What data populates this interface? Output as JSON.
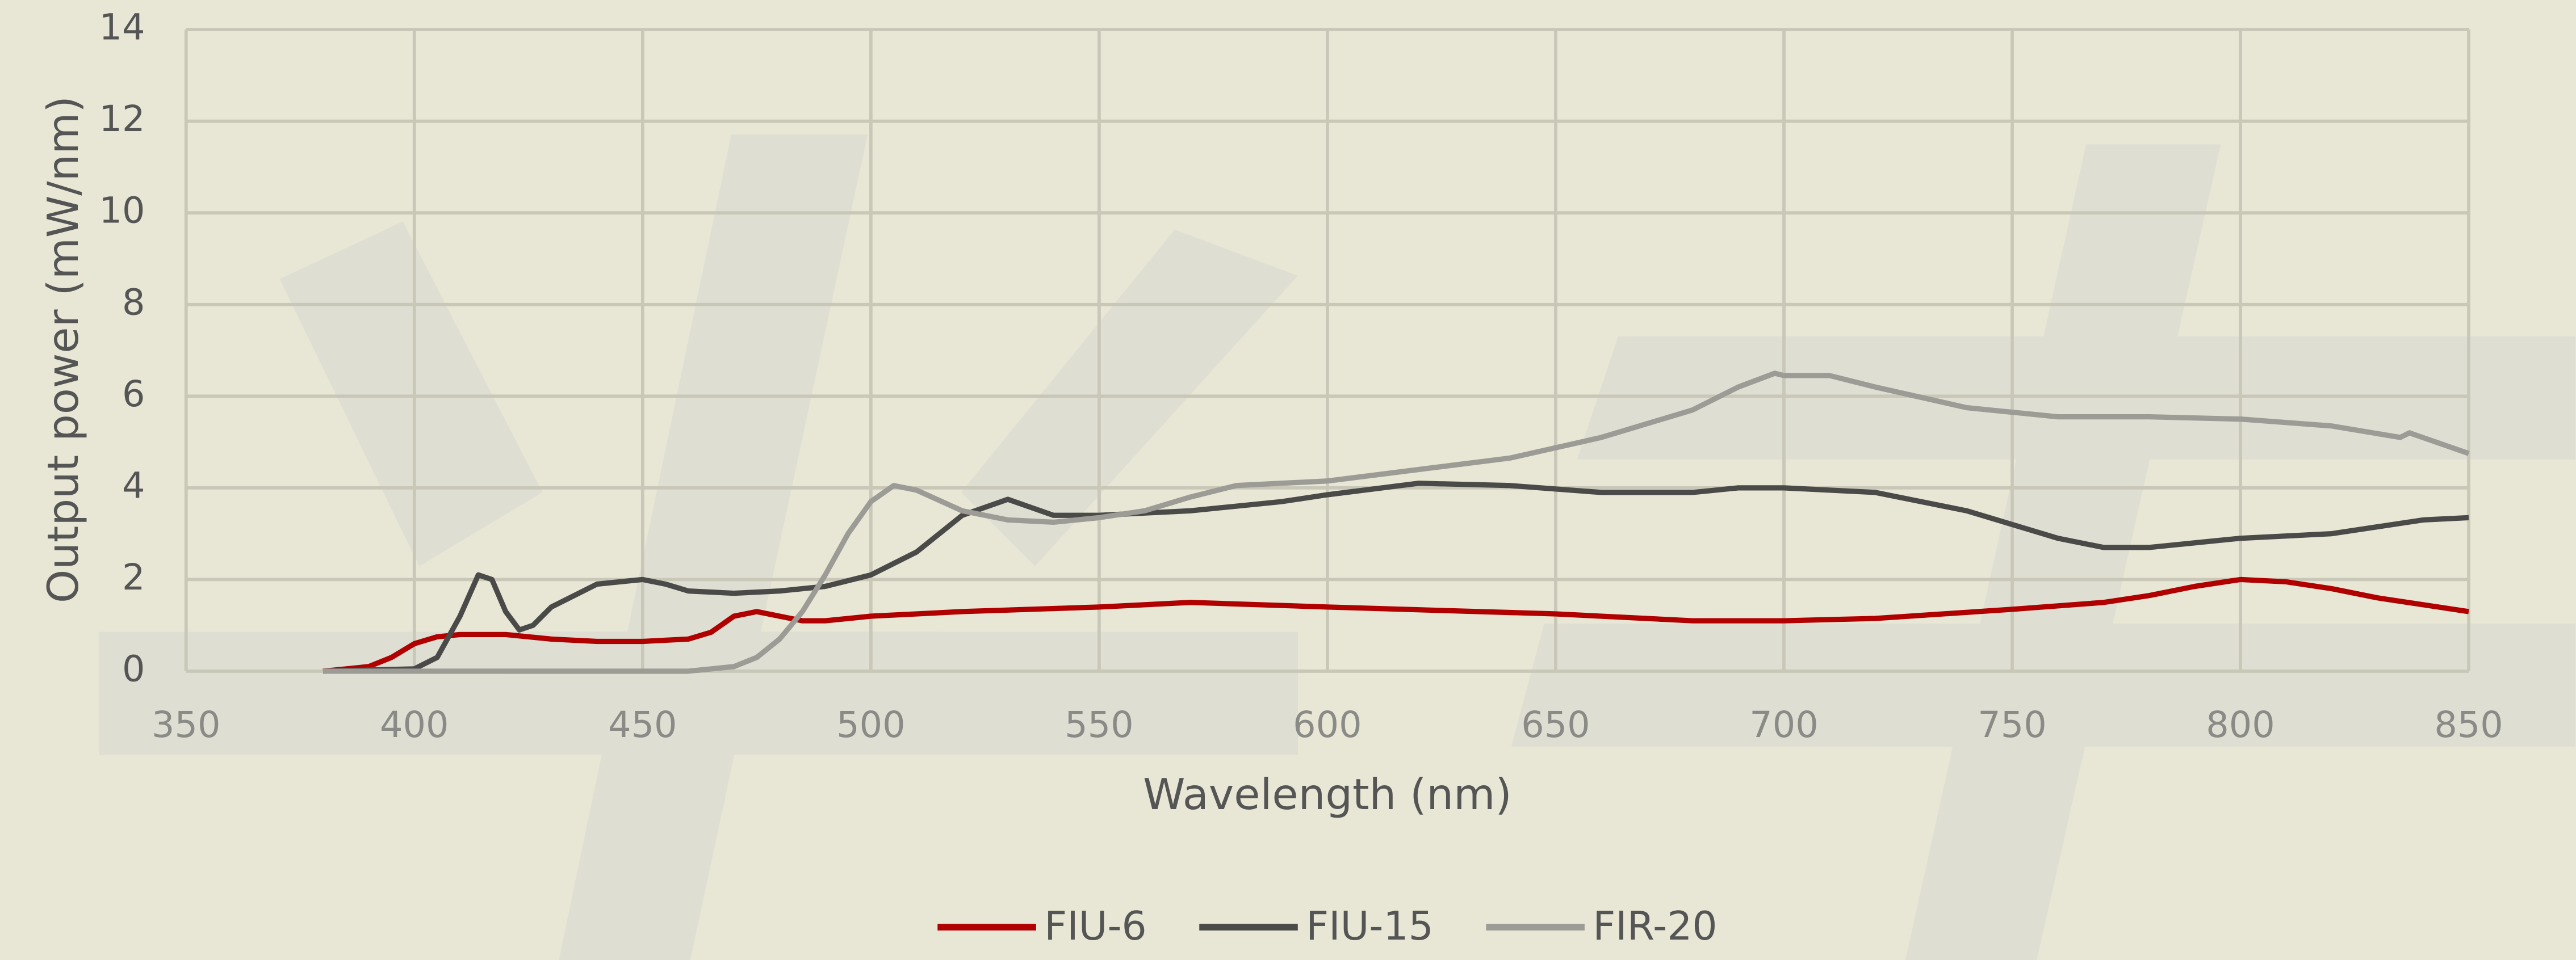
{
  "chart_data": {
    "type": "line",
    "xlabel": "Wavelength (nm)",
    "ylabel": "Output power (mW/nm)",
    "xlim": [
      350,
      850
    ],
    "xticks": [
      350,
      400,
      450,
      500,
      550,
      600,
      650,
      700,
      750,
      800,
      850
    ],
    "ylim": [
      0,
      14
    ],
    "yticks": [
      0,
      2,
      4,
      6,
      8,
      10,
      12,
      14
    ],
    "grid": true,
    "legend": "bottom",
    "series": [
      {
        "name": "FIU-6",
        "color": "#b00000",
        "x": [
          380,
          390,
          395,
          400,
          405,
          410,
          420,
          430,
          440,
          450,
          460,
          465,
          470,
          475,
          480,
          485,
          490,
          500,
          520,
          550,
          570,
          600,
          650,
          680,
          700,
          720,
          750,
          770,
          780,
          790,
          800,
          810,
          820,
          830,
          840,
          850
        ],
        "values": [
          0,
          0.1,
          0.3,
          0.6,
          0.75,
          0.8,
          0.8,
          0.7,
          0.65,
          0.65,
          0.7,
          0.85,
          1.2,
          1.3,
          1.2,
          1.1,
          1.1,
          1.2,
          1.3,
          1.4,
          1.5,
          1.4,
          1.25,
          1.1,
          1.1,
          1.15,
          1.35,
          1.5,
          1.65,
          1.85,
          2.0,
          1.95,
          1.8,
          1.6,
          1.45,
          1.3
        ]
      },
      {
        "name": "FIU-15",
        "color": "#4a4a48",
        "x": [
          380,
          400,
          405,
          410,
          414,
          417,
          420,
          423,
          426,
          430,
          440,
          450,
          455,
          460,
          470,
          480,
          490,
          500,
          510,
          520,
          530,
          540,
          550,
          570,
          590,
          600,
          620,
          640,
          660,
          680,
          690,
          700,
          720,
          740,
          750,
          760,
          770,
          780,
          790,
          800,
          820,
          830,
          840,
          850
        ],
        "values": [
          0,
          0.05,
          0.3,
          1.2,
          2.1,
          2.0,
          1.3,
          0.9,
          1.0,
          1.4,
          1.9,
          2.0,
          1.9,
          1.75,
          1.7,
          1.75,
          1.85,
          2.1,
          2.6,
          3.4,
          3.75,
          3.4,
          3.4,
          3.5,
          3.7,
          3.85,
          4.1,
          4.05,
          3.9,
          3.9,
          4.0,
          4.0,
          3.9,
          3.5,
          3.2,
          2.9,
          2.7,
          2.7,
          2.8,
          2.9,
          3.0,
          3.15,
          3.3,
          3.35
        ]
      },
      {
        "name": "FIR-20",
        "color": "#9c9b95",
        "x": [
          380,
          460,
          470,
          475,
          480,
          485,
          490,
          495,
          500,
          505,
          510,
          520,
          530,
          540,
          550,
          560,
          570,
          580,
          600,
          620,
          640,
          660,
          680,
          690,
          698,
          700,
          710,
          720,
          740,
          760,
          780,
          800,
          820,
          835,
          837,
          850
        ],
        "values": [
          0,
          0,
          0.1,
          0.3,
          0.7,
          1.3,
          2.1,
          3.0,
          3.7,
          4.05,
          3.95,
          3.5,
          3.3,
          3.25,
          3.35,
          3.5,
          3.8,
          4.05,
          4.15,
          4.4,
          4.65,
          5.1,
          5.7,
          6.2,
          6.5,
          6.45,
          6.45,
          6.2,
          5.75,
          5.55,
          5.55,
          5.5,
          5.35,
          5.1,
          5.2,
          4.75
        ]
      }
    ]
  }
}
